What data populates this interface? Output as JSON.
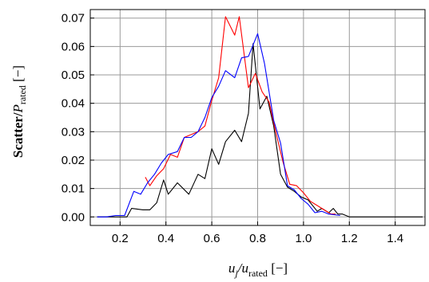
{
  "chart_data": {
    "type": "line",
    "title": "",
    "xlabel": {
      "pre": "u",
      "pre_sub": "j",
      "mid": "/u",
      "mid_sub": "rated",
      "post": " [−]"
    },
    "ylabel": {
      "pre": "Scatter/",
      "var": "P",
      "sub": "rated",
      "post": " [−]"
    },
    "xlim": [
      0.07,
      1.53
    ],
    "ylim": [
      -0.003,
      0.073
    ],
    "xticks": [
      0.2,
      0.4,
      0.6,
      0.8,
      1.0,
      1.2,
      1.4
    ],
    "xtick_labels": [
      "0.2",
      "0.4",
      "0.6",
      "0.8",
      "1.0",
      "1.2",
      "1.4"
    ],
    "yticks": [
      0.0,
      0.01,
      0.02,
      0.03,
      0.04,
      0.05,
      0.06,
      0.07
    ],
    "ytick_labels": [
      "0.00",
      "0.01",
      "0.02",
      "0.03",
      "0.04",
      "0.05",
      "0.06",
      "0.07"
    ],
    "grid": true,
    "legend": false,
    "series": [
      {
        "color": "#000000",
        "points": [
          [
            0.1,
            0.0
          ],
          [
            0.15,
            0.0
          ],
          [
            0.2,
            0.0
          ],
          [
            0.23,
            0.0
          ],
          [
            0.25,
            0.003
          ],
          [
            0.3,
            0.0025
          ],
          [
            0.33,
            0.0025
          ],
          [
            0.36,
            0.005
          ],
          [
            0.39,
            0.013
          ],
          [
            0.41,
            0.008
          ],
          [
            0.45,
            0.012
          ],
          [
            0.5,
            0.008
          ],
          [
            0.54,
            0.015
          ],
          [
            0.57,
            0.0135
          ],
          [
            0.6,
            0.024
          ],
          [
            0.63,
            0.0185
          ],
          [
            0.66,
            0.0265
          ],
          [
            0.7,
            0.0305
          ],
          [
            0.73,
            0.0265
          ],
          [
            0.76,
            0.0365
          ],
          [
            0.78,
            0.061
          ],
          [
            0.81,
            0.038
          ],
          [
            0.84,
            0.0425
          ],
          [
            0.87,
            0.032
          ],
          [
            0.9,
            0.015
          ],
          [
            0.93,
            0.0105
          ],
          [
            0.96,
            0.009
          ],
          [
            0.99,
            0.007
          ],
          [
            1.02,
            0.006
          ],
          [
            1.06,
            0.002
          ],
          [
            1.08,
            0.003
          ],
          [
            1.11,
            0.0015
          ],
          [
            1.13,
            0.003
          ],
          [
            1.15,
            0.001
          ],
          [
            1.17,
            0.001
          ],
          [
            1.2,
            0.0
          ],
          [
            1.3,
            0.0
          ],
          [
            1.4,
            0.0
          ],
          [
            1.5,
            0.0
          ],
          [
            1.52,
            0.0
          ]
        ]
      },
      {
        "color": "#ff0000",
        "points": [
          [
            0.31,
            0.014
          ],
          [
            0.33,
            0.011
          ],
          [
            0.36,
            0.0145
          ],
          [
            0.39,
            0.017
          ],
          [
            0.42,
            0.022
          ],
          [
            0.45,
            0.021
          ],
          [
            0.48,
            0.028
          ],
          [
            0.51,
            0.029
          ],
          [
            0.54,
            0.03
          ],
          [
            0.57,
            0.032
          ],
          [
            0.6,
            0.041
          ],
          [
            0.63,
            0.049
          ],
          [
            0.66,
            0.0705
          ],
          [
            0.7,
            0.064
          ],
          [
            0.72,
            0.0705
          ],
          [
            0.76,
            0.0455
          ],
          [
            0.79,
            0.0505
          ],
          [
            0.82,
            0.044
          ],
          [
            0.85,
            0.0405
          ],
          [
            0.88,
            0.0295
          ],
          [
            0.91,
            0.0195
          ],
          [
            0.94,
            0.0115
          ],
          [
            0.97,
            0.011
          ],
          [
            1.0,
            0.0085
          ],
          [
            1.03,
            0.0055
          ],
          [
            1.06,
            0.004
          ],
          [
            1.09,
            0.0025
          ],
          [
            1.12,
            0.001
          ],
          [
            1.14,
            0.001
          ]
        ]
      },
      {
        "color": "#0000ff",
        "points": [
          [
            0.1,
            0.0
          ],
          [
            0.14,
            0.0
          ],
          [
            0.18,
            0.0005
          ],
          [
            0.22,
            0.0005
          ],
          [
            0.26,
            0.009
          ],
          [
            0.29,
            0.008
          ],
          [
            0.32,
            0.012
          ],
          [
            0.35,
            0.015
          ],
          [
            0.38,
            0.019
          ],
          [
            0.41,
            0.022
          ],
          [
            0.45,
            0.023
          ],
          [
            0.48,
            0.028
          ],
          [
            0.51,
            0.028
          ],
          [
            0.54,
            0.03
          ],
          [
            0.57,
            0.035
          ],
          [
            0.6,
            0.042
          ],
          [
            0.63,
            0.046
          ],
          [
            0.66,
            0.0515
          ],
          [
            0.7,
            0.049
          ],
          [
            0.73,
            0.056
          ],
          [
            0.76,
            0.0565
          ],
          [
            0.8,
            0.0645
          ],
          [
            0.83,
            0.054
          ],
          [
            0.87,
            0.034
          ],
          [
            0.9,
            0.026
          ],
          [
            0.93,
            0.011
          ],
          [
            0.96,
            0.0095
          ],
          [
            0.99,
            0.0065
          ],
          [
            1.02,
            0.0045
          ],
          [
            1.05,
            0.0015
          ],
          [
            1.08,
            0.002
          ],
          [
            1.11,
            0.001
          ],
          [
            1.16,
            0.0005
          ]
        ]
      }
    ]
  }
}
